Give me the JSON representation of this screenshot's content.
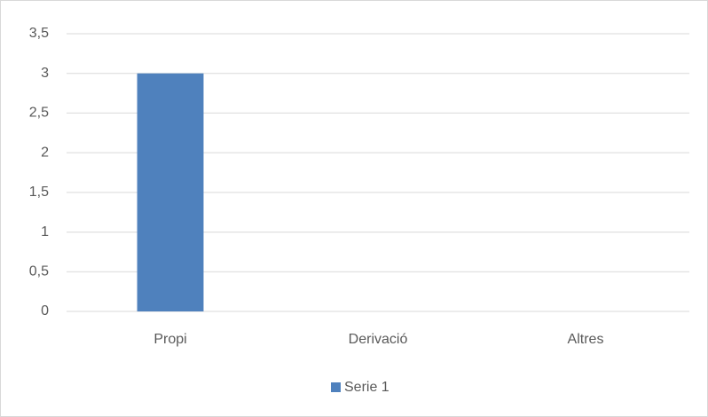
{
  "chart_data": {
    "type": "bar",
    "categories": [
      "Propi",
      "Derivació",
      "Altres"
    ],
    "series": [
      {
        "name": "Serie 1",
        "color": "#4f81bd",
        "values": [
          3,
          0,
          0
        ]
      }
    ],
    "ylim": [
      0,
      3.5
    ],
    "yticks": [
      0,
      {
        "value": 0.5,
        "label": "0,5"
      },
      1,
      {
        "value": 1.5,
        "label": "1,5"
      },
      2,
      {
        "value": 2.5,
        "label": "2,5"
      },
      3,
      {
        "value": 3.5,
        "label": "3,5"
      }
    ],
    "grid": true,
    "legend": "bottom"
  }
}
